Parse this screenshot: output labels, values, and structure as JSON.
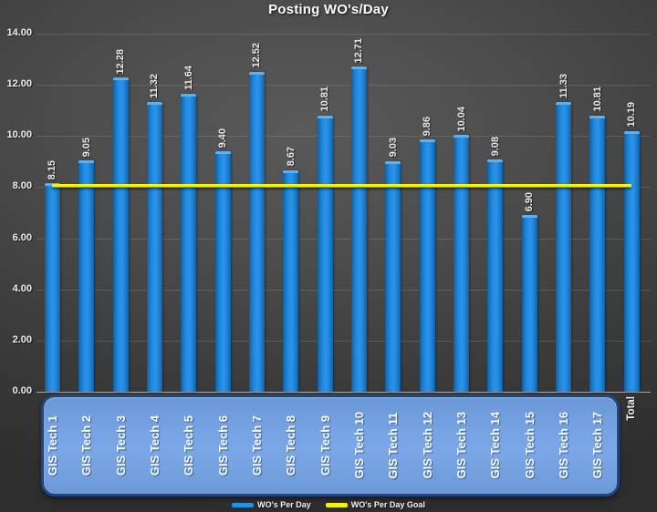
{
  "title": "Posting WO's/Day",
  "legend": {
    "items": [
      {
        "label": "WO's Per Day",
        "swatch_color": "#2192ea",
        "series": "bars"
      },
      {
        "label": "WO's Per Day Goal",
        "swatch_color": "#f6f400",
        "series": "goal-line"
      }
    ],
    "position": "bottom"
  },
  "colors": {
    "bar_fill": "#1e86da",
    "bar_cap": "#5eb1ef",
    "goal_line": "#f6f400",
    "category_box_fill": "#74a1e0",
    "category_box_border": "#23457d",
    "text": "#f2f2f2",
    "background_center": "#5a5a5a",
    "background_edge": "#2d2d2d"
  },
  "chart_data": {
    "type": "bar",
    "title": "Posting WO's/Day",
    "series_name": "WO's Per Day",
    "categories": [
      "GIS Tech 1",
      "GIS Tech 2",
      "GIS Tech 3",
      "GIS Tech 4",
      "GIS Tech 5",
      "GIS Tech 6",
      "GIS Tech 7",
      "GIS Tech 8",
      "GIS Tech 9",
      "GIS Tech 10",
      "GIS Tech 11",
      "GIS Tech 12",
      "GIS Tech 13",
      "GIS Tech 14",
      "GIS Tech 15",
      "GIS Tech 16",
      "GIS Tech 17",
      "Total"
    ],
    "values": [
      8.15,
      9.05,
      12.28,
      11.32,
      11.64,
      9.4,
      12.52,
      8.67,
      10.81,
      12.71,
      9.03,
      9.86,
      10.04,
      9.08,
      6.9,
      11.33,
      10.81,
      10.19
    ],
    "value_labels": [
      "8.15",
      "9.05",
      "12.28",
      "11.32",
      "11.64",
      "9.40",
      "12.52",
      "8.67",
      "10.81",
      "12.71",
      "9.03",
      "9.86",
      "10.04",
      "9.08",
      "6.90",
      "11.33",
      "10.81",
      "10.19"
    ],
    "goal": {
      "name": "WO's Per Day Goal",
      "value": 8.0
    },
    "xlabel": "",
    "ylabel": "",
    "ylim": [
      0,
      14
    ],
    "ytick_step": 2,
    "ytick_labels": [
      "0.00",
      "2.00",
      "4.00",
      "6.00",
      "8.00",
      "10.00",
      "12.00",
      "14.00"
    ],
    "grid": true,
    "legend_position": "bottom"
  }
}
